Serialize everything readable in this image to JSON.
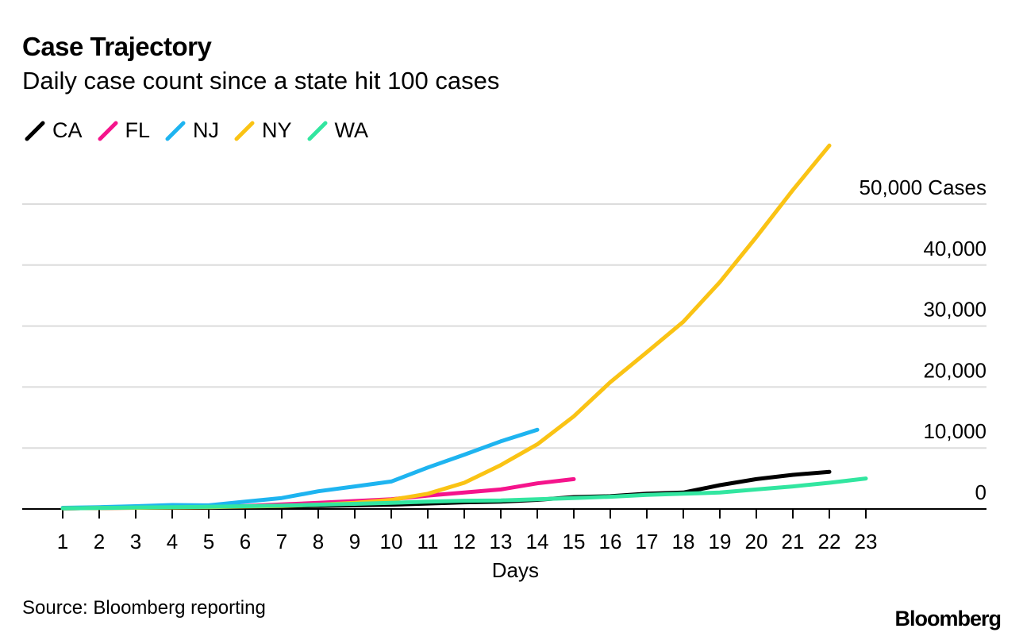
{
  "header": {
    "title": "Case Trajectory",
    "subtitle": "Daily case count since a state hit 100 cases"
  },
  "chart_data": {
    "type": "line",
    "title": "Case Trajectory",
    "subtitle": "Daily case count since a state hit 100 cases",
    "xlabel": "Days",
    "ylabel": "Cases",
    "x": [
      1,
      2,
      3,
      4,
      5,
      6,
      7,
      8,
      9,
      10,
      11,
      12,
      13,
      14,
      15,
      16,
      17,
      18,
      19,
      20,
      21,
      22,
      23
    ],
    "ylim": [
      0,
      50000
    ],
    "yticks": [
      0,
      10000,
      20000,
      30000,
      40000,
      50000
    ],
    "ytick_labels": [
      "0",
      "10,000",
      "20,000",
      "30,000",
      "40,000",
      "50,000 Cases"
    ],
    "grid": true,
    "legend_position": "top-left",
    "series": [
      {
        "name": "CA",
        "color": "#000000",
        "x": [
          1,
          2,
          3,
          4,
          5,
          6,
          7,
          8,
          9,
          10,
          11,
          12,
          13,
          14,
          15,
          16,
          17,
          18,
          19,
          20,
          21,
          22
        ],
        "values": [
          100,
          150,
          200,
          250,
          300,
          350,
          400,
          500,
          600,
          700,
          900,
          1100,
          1200,
          1500,
          1950,
          2100,
          2500,
          2700,
          3900,
          4900,
          5600,
          6100
        ]
      },
      {
        "name": "FL",
        "color": "#f5148c",
        "x": [
          1,
          2,
          3,
          4,
          5,
          6,
          7,
          8,
          9,
          10,
          11,
          12,
          13,
          14,
          15
        ],
        "values": [
          100,
          150,
          250,
          300,
          350,
          500,
          750,
          1000,
          1300,
          1600,
          2200,
          2700,
          3200,
          4200,
          4900
        ]
      },
      {
        "name": "NJ",
        "color": "#1eb4f0",
        "x": [
          1,
          2,
          3,
          4,
          5,
          6,
          7,
          8,
          9,
          10,
          11,
          12,
          13,
          14
        ],
        "values": [
          200,
          300,
          450,
          650,
          600,
          1200,
          1800,
          2900,
          3700,
          4500,
          6800,
          8900,
          11100,
          13000
        ]
      },
      {
        "name": "NY",
        "color": "#fac314",
        "x": [
          1,
          2,
          3,
          4,
          5,
          6,
          7,
          8,
          9,
          10,
          11,
          12,
          13,
          14,
          15,
          16,
          17,
          18,
          19,
          20,
          21,
          22
        ],
        "values": [
          100,
          150,
          200,
          250,
          300,
          400,
          500,
          700,
          1000,
          1500,
          2500,
          4300,
          7200,
          10600,
          15200,
          20800,
          25700,
          30700,
          37200,
          44600,
          52300,
          59600
        ]
      },
      {
        "name": "WA",
        "color": "#32e6a0",
        "x": [
          1,
          2,
          3,
          4,
          5,
          6,
          7,
          8,
          9,
          10,
          11,
          12,
          13,
          14,
          15,
          16,
          17,
          18,
          19,
          20,
          21,
          22,
          23
        ],
        "values": [
          100,
          150,
          250,
          300,
          350,
          450,
          550,
          700,
          850,
          1000,
          1200,
          1350,
          1400,
          1600,
          1800,
          2000,
          2300,
          2500,
          2700,
          3200,
          3700,
          4300,
          5000
        ]
      }
    ]
  },
  "footer": {
    "source": "Source: Bloomberg reporting",
    "brand": "Bloomberg"
  }
}
